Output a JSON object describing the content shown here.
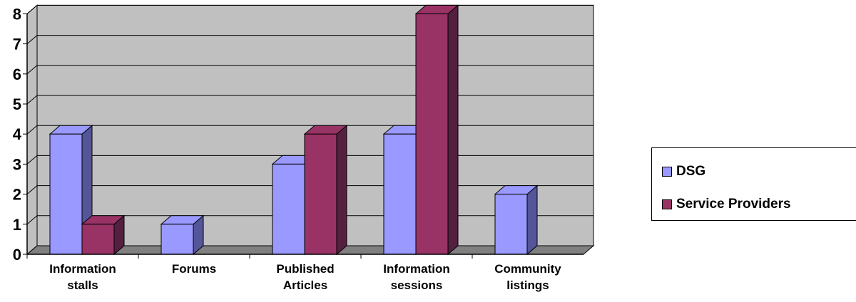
{
  "chart_data": {
    "type": "bar",
    "style": "3d-clustered-column",
    "categories": [
      [
        "Information",
        "stalls"
      ],
      [
        "Forums"
      ],
      [
        "Published",
        "Articles"
      ],
      [
        "Information",
        "sessions"
      ],
      [
        "Community",
        "listings"
      ]
    ],
    "series": [
      {
        "name": "DSG",
        "values": [
          4,
          1,
          3,
          4,
          2
        ],
        "color": "#9999ff",
        "side_color": "#555599"
      },
      {
        "name": "Service Providers",
        "values": [
          1,
          0,
          4,
          8,
          0
        ],
        "color": "#993366",
        "side_color": "#552040"
      }
    ],
    "title": "",
    "xlabel": "",
    "ylabel": "",
    "ylim": [
      0,
      8
    ],
    "yticks": [
      "0",
      "1",
      "2",
      "3",
      "4",
      "5",
      "6",
      "7",
      "8"
    ],
    "grid": true,
    "plot_background": "#c0c0c0",
    "floor_color": "#808080",
    "legend_position": "right"
  }
}
